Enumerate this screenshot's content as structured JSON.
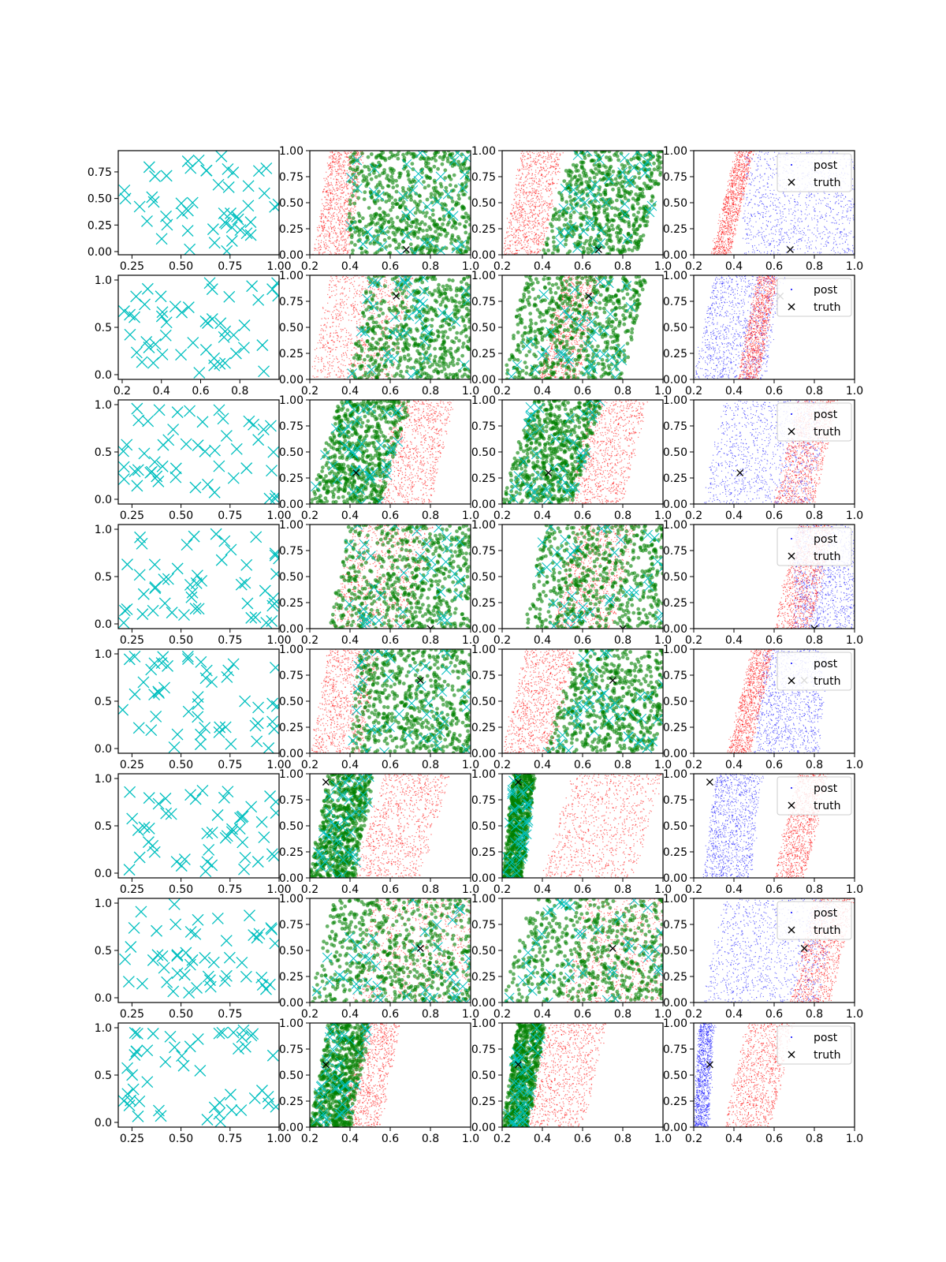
{
  "figure": {
    "description_rows": 8,
    "description_cols": 4
  },
  "colors": {
    "data_marker": "#00bfbf",
    "red_samples": "#ff0000",
    "green_samples": "#008000",
    "blue_samples": "#0000ff",
    "truth_marker": "#000000"
  },
  "legend": {
    "post_label": "post",
    "truth_label": "truth"
  },
  "chart_data": [
    {
      "row": 0,
      "truth": [
        0.68,
        0.05
      ],
      "col1": {
        "type": "scatter",
        "xlim": [
          0.18,
          1.0
        ],
        "ylim": [
          -0.03,
          0.95
        ],
        "xticks": [
          0.25,
          0.5,
          0.75,
          1.0
        ],
        "xtick_labels": [
          "0.25",
          "0.50",
          "0.75",
          "1.00"
        ],
        "yticks": [
          0.0,
          0.25,
          0.5,
          0.75
        ],
        "ytick_labels": [
          "0.00",
          "0.25",
          "0.50",
          "0.75"
        ]
      },
      "mid": {
        "xlim": [
          0.2,
          1.0
        ],
        "ylim": [
          0.0,
          1.0
        ],
        "xticks": [
          0.2,
          0.4,
          0.6,
          0.8,
          1.0
        ],
        "xtick_labels": [
          "0.2",
          "0.4",
          "0.6",
          "0.8",
          "1.0"
        ],
        "yticks": [
          0.0,
          0.25,
          0.5,
          0.75,
          1.0
        ],
        "ytick_labels": [
          "0.00",
          "0.25",
          "0.50",
          "0.75",
          "1.00"
        ]
      },
      "col2": {
        "red": {
          "x0": 0.22,
          "x1": 0.39,
          "slope": 0.08
        },
        "green": {
          "x0": 0.4,
          "x1": 1.0,
          "slope": 0.0
        }
      },
      "col3": {
        "red": {
          "x0": 0.2,
          "x1": 0.4,
          "slope": 0.1
        },
        "green": {
          "x0": 0.4,
          "x1": 0.88,
          "slope": 0.15
        }
      },
      "col4": {
        "red": {
          "x0": 0.29,
          "x1": 0.38,
          "slope": 0.12
        },
        "blue": {
          "x0": 0.45,
          "x1": 1.0,
          "slope": 0.0
        }
      }
    },
    {
      "row": 1,
      "truth": [
        0.63,
        0.8
      ],
      "col1": {
        "type": "scatter",
        "xlim": [
          0.18,
          1.0
        ],
        "ylim": [
          -0.05,
          1.05
        ],
        "xticks": [
          0.2,
          0.4,
          0.6,
          0.8
        ],
        "xtick_labels": [
          "0.2",
          "0.4",
          "0.6",
          "0.8"
        ],
        "yticks": [
          0.0,
          0.5,
          1.0
        ],
        "ytick_labels": [
          "0.0",
          "0.5",
          "1.0"
        ]
      },
      "mid": {
        "xlim": [
          0.2,
          1.0
        ],
        "ylim": [
          0.0,
          1.0
        ],
        "xticks": [
          0.2,
          0.4,
          0.6,
          0.8,
          1.0
        ],
        "xtick_labels": [
          "0.2",
          "0.4",
          "0.6",
          "0.8",
          "1.0"
        ],
        "yticks": [
          0.0,
          0.25,
          0.5,
          0.75,
          1.0
        ],
        "ytick_labels": [
          "0.00",
          "0.25",
          "0.50",
          "0.75",
          "1.00"
        ]
      },
      "col2": {
        "red": {
          "x0": 0.2,
          "x1": 0.62,
          "slope": 0.1
        },
        "green": {
          "x0": 0.4,
          "x1": 1.0,
          "slope": 0.1
        }
      },
      "col3": {
        "red": {
          "x0": 0.38,
          "x1": 0.58,
          "slope": 0.12
        },
        "green": {
          "x0": 0.2,
          "x1": 0.8,
          "slope": 0.12
        }
      },
      "col4": {
        "red": {
          "x0": 0.42,
          "x1": 0.52,
          "slope": 0.1
        },
        "blue": {
          "x0": 0.2,
          "x1": 0.55,
          "slope": 0.1
        }
      }
    },
    {
      "row": 2,
      "truth": [
        0.43,
        0.3
      ],
      "col1": {
        "type": "scatter",
        "xlim": [
          0.18,
          1.0
        ],
        "ylim": [
          -0.05,
          1.05
        ],
        "xticks": [
          0.25,
          0.5,
          0.75,
          1.0
        ],
        "xtick_labels": [
          "0.25",
          "0.50",
          "0.75",
          "1.00"
        ],
        "yticks": [
          0.0,
          0.5,
          1.0
        ],
        "ytick_labels": [
          "0.0",
          "0.5",
          "1.0"
        ]
      },
      "mid": {
        "xlim": [
          0.2,
          1.0
        ],
        "ylim": [
          0.0,
          1.0
        ],
        "xticks": [
          0.2,
          0.4,
          0.6,
          0.8,
          1.0
        ],
        "xtick_labels": [
          "0.2",
          "0.4",
          "0.6",
          "0.8",
          "1.0"
        ],
        "yticks": [
          0.0,
          0.25,
          0.5,
          0.75,
          1.0
        ],
        "ytick_labels": [
          "0.00",
          "0.25",
          "0.50",
          "0.75",
          "1.00"
        ]
      },
      "col2": {
        "red": {
          "x0": 0.52,
          "x1": 0.8,
          "slope": 0.12
        },
        "green": {
          "x0": 0.2,
          "x1": 0.55,
          "slope": 0.15
        }
      },
      "col3": {
        "red": {
          "x0": 0.52,
          "x1": 0.8,
          "slope": 0.12
        },
        "green": {
          "x0": 0.2,
          "x1": 0.55,
          "slope": 0.15
        }
      },
      "col4": {
        "red": {
          "x0": 0.6,
          "x1": 0.8,
          "slope": 0.12
        },
        "blue": {
          "x0": 0.25,
          "x1": 0.78,
          "slope": 0.1
        }
      }
    },
    {
      "row": 3,
      "truth": [
        0.8,
        0.0
      ],
      "col1": {
        "type": "scatter",
        "xlim": [
          0.18,
          1.0
        ],
        "ylim": [
          -0.05,
          1.05
        ],
        "xticks": [
          0.25,
          0.5,
          0.75,
          1.0
        ],
        "xtick_labels": [
          "0.25",
          "0.50",
          "0.75",
          "1.00"
        ],
        "yticks": [
          0.0,
          0.5,
          1.0
        ],
        "ytick_labels": [
          "0.0",
          "0.5",
          "1.0"
        ]
      },
      "mid": {
        "xlim": [
          0.2,
          1.0
        ],
        "ylim": [
          0.0,
          1.0
        ],
        "xticks": [
          0.2,
          0.4,
          0.6,
          0.8,
          1.0
        ],
        "xtick_labels": [
          "0.2",
          "0.4",
          "0.6",
          "0.8",
          "1.0"
        ],
        "yticks": [
          0.0,
          0.25,
          0.5,
          0.75,
          1.0
        ],
        "ytick_labels": [
          "0.00",
          "0.25",
          "0.50",
          "0.75",
          "1.00"
        ]
      },
      "col2": {
        "red": {
          "x0": 0.3,
          "x1": 0.7,
          "slope": 0.12
        },
        "green": {
          "x0": 0.3,
          "x1": 1.0,
          "slope": 0.1
        }
      },
      "col3": {
        "red": {
          "x0": 0.45,
          "x1": 0.75,
          "slope": 0.12
        },
        "green": {
          "x0": 0.3,
          "x1": 1.0,
          "slope": 0.12
        }
      },
      "col4": {
        "red": {
          "x0": 0.6,
          "x1": 0.78,
          "slope": 0.12
        },
        "blue": {
          "x0": 0.7,
          "x1": 1.0,
          "slope": 0.0
        }
      }
    },
    {
      "row": 4,
      "truth": [
        0.75,
        0.7
      ],
      "col1": {
        "type": "scatter",
        "xlim": [
          0.18,
          1.0
        ],
        "ylim": [
          -0.05,
          1.05
        ],
        "xticks": [
          0.25,
          0.5,
          0.75,
          1.0
        ],
        "xtick_labels": [
          "0.25",
          "0.50",
          "0.75",
          "1.00"
        ],
        "yticks": [
          0.0,
          0.5,
          1.0
        ],
        "ytick_labels": [
          "0.0",
          "0.5",
          "1.0"
        ]
      },
      "mid": {
        "xlim": [
          0.2,
          1.0
        ],
        "ylim": [
          0.0,
          1.0
        ],
        "xticks": [
          0.2,
          0.4,
          0.6,
          0.8,
          1.0
        ],
        "xtick_labels": [
          "0.2",
          "0.4",
          "0.6",
          "0.8",
          "1.0"
        ],
        "yticks": [
          0.0,
          0.25,
          0.5,
          0.75,
          1.0
        ],
        "ytick_labels": [
          "0.00",
          "0.25",
          "0.50",
          "0.75",
          "1.00"
        ]
      },
      "col2": {
        "red": {
          "x0": 0.2,
          "x1": 0.45,
          "slope": 0.1
        },
        "green": {
          "x0": 0.4,
          "x1": 1.0,
          "slope": 0.05
        }
      },
      "col3": {
        "red": {
          "x0": 0.2,
          "x1": 0.45,
          "slope": 0.12
        },
        "green": {
          "x0": 0.42,
          "x1": 0.95,
          "slope": 0.15
        }
      },
      "col4": {
        "red": {
          "x0": 0.37,
          "x1": 0.48,
          "slope": 0.12
        },
        "blue": {
          "x0": 0.5,
          "x1": 0.82,
          "slope": 0.05
        }
      }
    },
    {
      "row": 5,
      "truth": [
        0.28,
        0.92
      ],
      "col1": {
        "type": "scatter",
        "xlim": [
          0.18,
          1.0
        ],
        "ylim": [
          -0.05,
          1.05
        ],
        "xticks": [
          0.25,
          0.5,
          0.75,
          1.0
        ],
        "xtick_labels": [
          "0.25",
          "0.50",
          "0.75",
          "1.00"
        ],
        "yticks": [
          0.0,
          0.5,
          1.0
        ],
        "ytick_labels": [
          "0.0",
          "0.5",
          "1.0"
        ]
      },
      "mid": {
        "xlim": [
          0.2,
          1.0
        ],
        "ylim": [
          0.0,
          1.0
        ],
        "xticks": [
          0.2,
          0.4,
          0.6,
          0.8,
          1.0
        ],
        "xtick_labels": [
          "0.2",
          "0.4",
          "0.6",
          "0.8",
          "1.0"
        ],
        "yticks": [
          0.0,
          0.25,
          0.5,
          0.75,
          1.0
        ],
        "ytick_labels": [
          "0.00",
          "0.25",
          "0.50",
          "0.75",
          "1.00"
        ]
      },
      "col2": {
        "red": {
          "x0": 0.42,
          "x1": 0.75,
          "slope": 0.15
        },
        "green": {
          "x0": 0.2,
          "x1": 0.42,
          "slope": 0.1
        }
      },
      "col3": {
        "red": {
          "x0": 0.4,
          "x1": 0.85,
          "slope": 0.15
        },
        "green": {
          "x0": 0.2,
          "x1": 0.3,
          "slope": 0.06
        }
      },
      "col4": {
        "red": {
          "x0": 0.6,
          "x1": 0.75,
          "slope": 0.12
        },
        "blue": {
          "x0": 0.25,
          "x1": 0.48,
          "slope": 0.06
        }
      }
    },
    {
      "row": 6,
      "truth": [
        0.75,
        0.52
      ],
      "col1": {
        "type": "scatter",
        "xlim": [
          0.18,
          1.0
        ],
        "ylim": [
          -0.05,
          1.05
        ],
        "xticks": [
          0.25,
          0.5,
          0.75
        ],
        "xtick_labels": [
          "0.25",
          "0.50",
          "0.75"
        ],
        "yticks": [
          0.0,
          0.5,
          1.0
        ],
        "ytick_labels": [
          "0.0",
          "0.5",
          "1.0"
        ]
      },
      "mid": {
        "xlim": [
          0.2,
          1.0
        ],
        "ylim": [
          0.0,
          1.0
        ],
        "xticks": [
          0.2,
          0.4,
          0.6,
          0.8,
          1.0
        ],
        "xtick_labels": [
          "0.2",
          "0.4",
          "0.6",
          "0.8",
          "1.0"
        ],
        "yticks": [
          0.0,
          0.25,
          0.5,
          0.75,
          1.0
        ],
        "ytick_labels": [
          "0.00",
          "0.25",
          "0.50",
          "0.75",
          "1.00"
        ]
      },
      "col2": {
        "red": {
          "x0": 0.4,
          "x1": 1.0,
          "slope": 0.12
        },
        "green": {
          "x0": 0.2,
          "x1": 1.0,
          "slope": 0.12
        }
      },
      "col3": {
        "red": {
          "x0": 0.5,
          "x1": 1.0,
          "slope": 0.12
        },
        "green": {
          "x0": 0.2,
          "x1": 1.0,
          "slope": 0.15
        }
      },
      "col4": {
        "red": {
          "x0": 0.68,
          "x1": 0.88,
          "slope": 0.12
        },
        "blue": {
          "x0": 0.25,
          "x1": 0.82,
          "slope": 0.1
        }
      }
    },
    {
      "row": 7,
      "truth": [
        0.28,
        0.6
      ],
      "col1": {
        "type": "scatter",
        "xlim": [
          0.18,
          1.0
        ],
        "ylim": [
          -0.05,
          1.05
        ],
        "xticks": [
          0.25,
          0.5,
          0.75,
          1.0
        ],
        "xtick_labels": [
          "0.25",
          "0.50",
          "0.75",
          "1.00"
        ],
        "yticks": [
          0.0,
          0.5,
          1.0
        ],
        "ytick_labels": [
          "0.0",
          "0.5",
          "1.0"
        ]
      },
      "mid": {
        "xlim": [
          0.2,
          1.0
        ],
        "ylim": [
          0.0,
          1.0
        ],
        "xticks": [
          0.2,
          0.4,
          0.6,
          0.8,
          1.0
        ],
        "xtick_labels": [
          "0.2",
          "0.4",
          "0.6",
          "0.8",
          "1.0"
        ],
        "yticks": [
          0.0,
          0.25,
          0.5,
          0.75,
          1.0
        ],
        "ytick_labels": [
          "0.00",
          "0.25",
          "0.50",
          "0.75",
          "1.00"
        ]
      },
      "col2": {
        "red": {
          "x0": 0.35,
          "x1": 0.55,
          "slope": 0.1
        },
        "green": {
          "x0": 0.2,
          "x1": 0.4,
          "slope": 0.1
        }
      },
      "col3": {
        "red": {
          "x0": 0.3,
          "x1": 0.6,
          "slope": 0.12
        },
        "green": {
          "x0": 0.2,
          "x1": 0.33,
          "slope": 0.08
        }
      },
      "col4": {
        "red": {
          "x0": 0.35,
          "x1": 0.58,
          "slope": 0.12
        },
        "blue": {
          "x0": 0.2,
          "x1": 0.27,
          "slope": 0.03
        }
      }
    }
  ]
}
